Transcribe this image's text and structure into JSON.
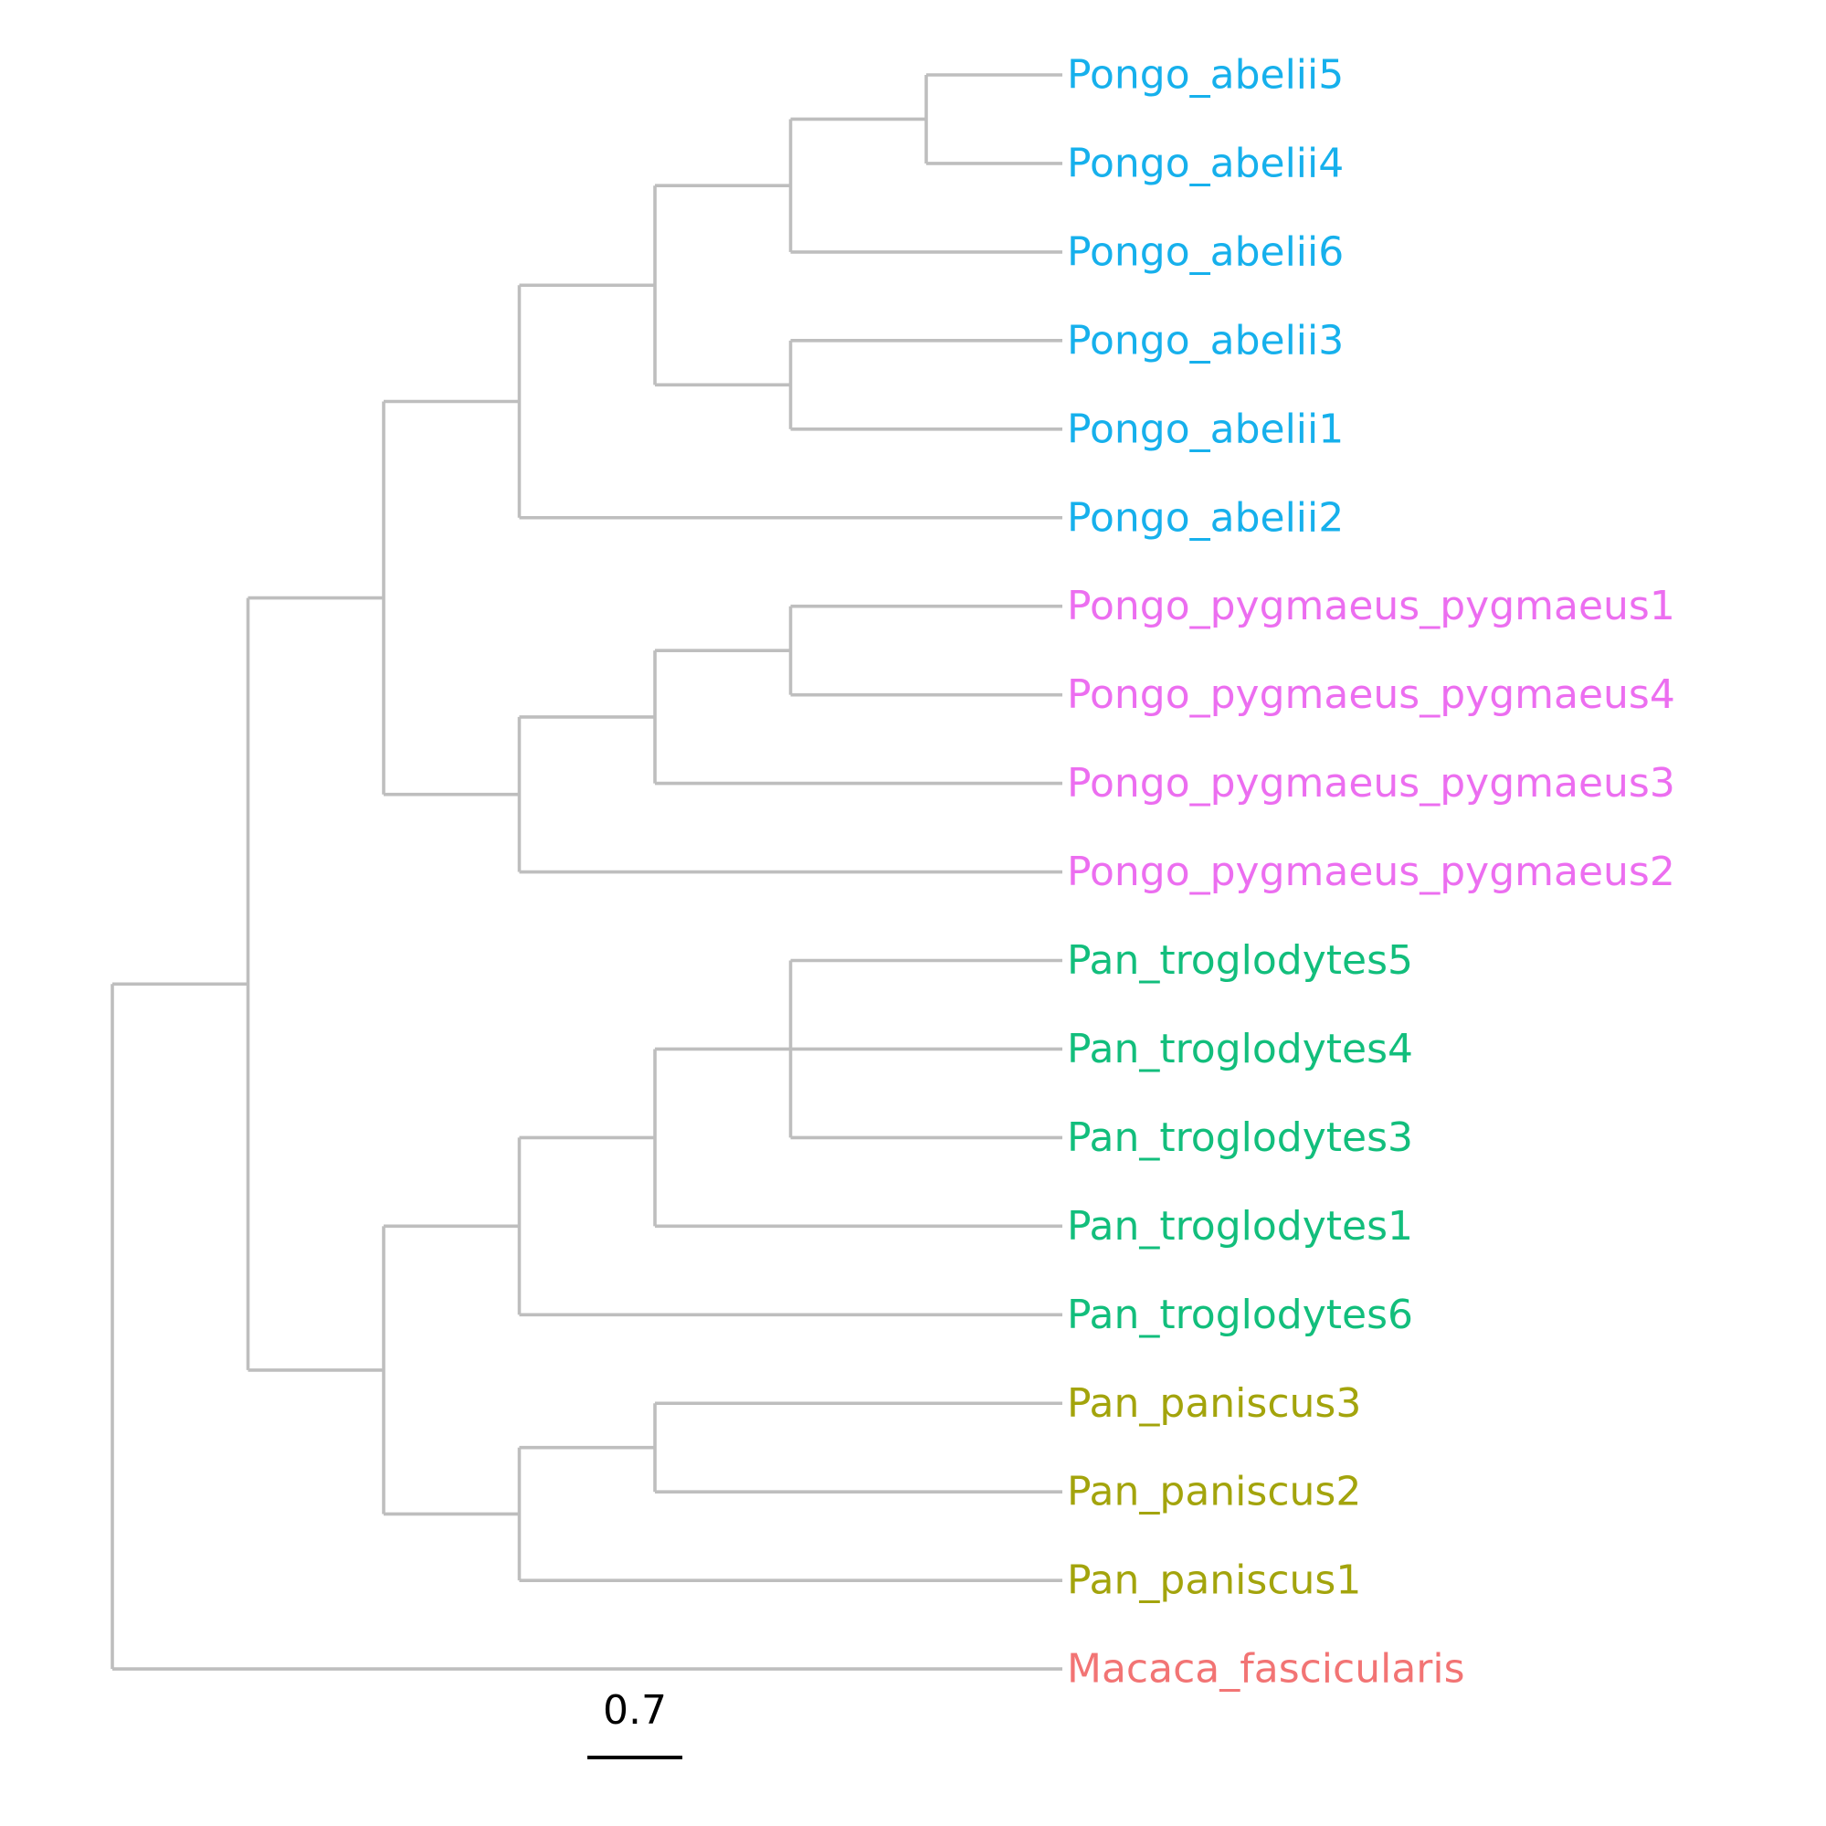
{
  "colors": {
    "branch": "#bebebe",
    "Pongo_abelii": "#16b0ec",
    "Pongo_pygmaeus_pygmaeus": "#ec6ef0",
    "Pan_troglodytes": "#12be7c",
    "Pan_paniscus": "#a3a40c",
    "Macaca_fascicularis": "#f27474",
    "scale": "#000000"
  },
  "tree": {
    "tips": [
      {
        "label": "Pongo_abelii5",
        "group": "Pongo_abelii"
      },
      {
        "label": "Pongo_abelii4",
        "group": "Pongo_abelii"
      },
      {
        "label": "Pongo_abelii6",
        "group": "Pongo_abelii"
      },
      {
        "label": "Pongo_abelii3",
        "group": "Pongo_abelii"
      },
      {
        "label": "Pongo_abelii1",
        "group": "Pongo_abelii"
      },
      {
        "label": "Pongo_abelii2",
        "group": "Pongo_abelii"
      },
      {
        "label": "Pongo_pygmaeus_pygmaeus1",
        "group": "Pongo_pygmaeus_pygmaeus"
      },
      {
        "label": "Pongo_pygmaeus_pygmaeus4",
        "group": "Pongo_pygmaeus_pygmaeus"
      },
      {
        "label": "Pongo_pygmaeus_pygmaeus3",
        "group": "Pongo_pygmaeus_pygmaeus"
      },
      {
        "label": "Pongo_pygmaeus_pygmaeus2",
        "group": "Pongo_pygmaeus_pygmaeus"
      },
      {
        "label": "Pan_troglodytes5",
        "group": "Pan_troglodytes"
      },
      {
        "label": "Pan_troglodytes4",
        "group": "Pan_troglodytes"
      },
      {
        "label": "Pan_troglodytes3",
        "group": "Pan_troglodytes"
      },
      {
        "label": "Pan_troglodytes1",
        "group": "Pan_troglodytes"
      },
      {
        "label": "Pan_troglodytes6",
        "group": "Pan_troglodytes"
      },
      {
        "label": "Pan_paniscus3",
        "group": "Pan_paniscus"
      },
      {
        "label": "Pan_paniscus2",
        "group": "Pan_paniscus"
      },
      {
        "label": "Pan_paniscus1",
        "group": "Pan_paniscus"
      },
      {
        "label": "Macaca_fascicularis",
        "group": "Macaca_fascicularis"
      }
    ],
    "newick": "(((((((Pongo_abelii5,Pongo_abelii4),Pongo_abelii6),(Pongo_abelii3,Pongo_abelii1)),Pongo_abelii2),(((Pongo_pygmaeus_pygmaeus1,Pongo_pygmaeus_pygmaeus4),Pongo_pygmaeus_pygmaeus3),Pongo_pygmaeus_pygmaeus2)),((((Pan_troglodytes5,Pan_troglodytes4,Pan_troglodytes3),Pan_troglodytes1),Pan_troglodytes6),((Pan_paniscus3,Pan_paniscus2),Pan_paniscus1))),Macaca_fascicularis);",
    "scale_bar": {
      "label": "0.7"
    }
  }
}
